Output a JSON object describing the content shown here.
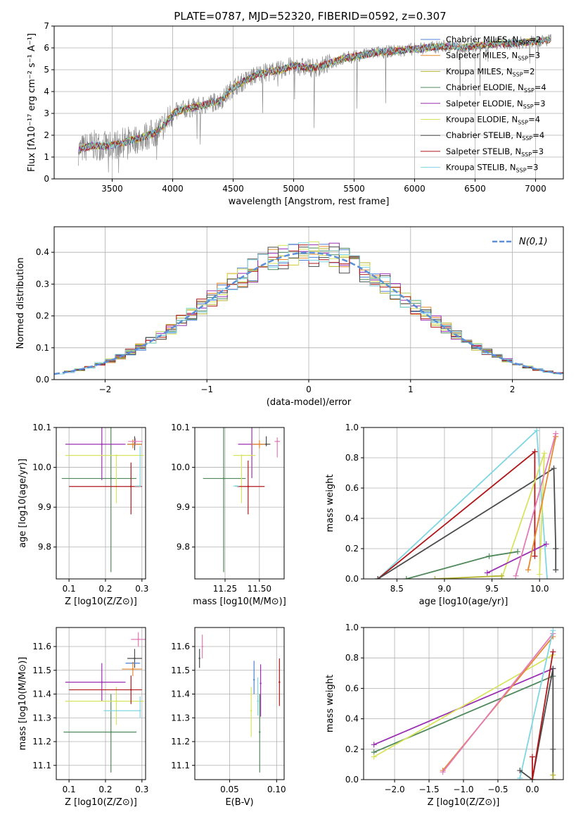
{
  "figure_title": "PLATE=0787, MJD=52320, FIBERID=0592, z=0.307",
  "series_colors": {
    "Chabrier MILES": "#4f81d9",
    "Salpeter MILES": "#e58a2e",
    "Kroupa MILES": "#b4b431",
    "Chabrier ELODIE": "#508a5c",
    "Salpeter ELODIE": "#9b2fb2",
    "Kroupa ELODIE": "#d8e45d",
    "Chabrier STELIB": "#4b4b4b",
    "Salpeter STELIB": "#b0181b",
    "Kroupa STELIB": "#7fd6e2",
    "data": "#808080",
    "pink": "#e37bb8"
  },
  "chart_data": [
    {
      "id": "spectrum",
      "type": "line",
      "title": "PLATE=0787, MJD=52320, FIBERID=0592, z=0.307",
      "xlabel": "wavelength [Angstrom, rest frame]",
      "ylabel": "Flux [fλ10⁻¹⁷ erg cm⁻² s⁻¹ A⁻¹]",
      "xlim": [
        3020,
        7230
      ],
      "ylim": [
        0,
        7
      ],
      "xticks": [
        3500,
        4000,
        4500,
        5000,
        5500,
        6000,
        6500,
        7000
      ],
      "yticks": [
        0,
        1,
        2,
        3,
        4,
        5,
        6,
        7
      ],
      "legend_position": "upper-right",
      "legend": [
        {
          "label": "Chabrier MILES, N_SSP=2",
          "color": "#4f81d9"
        },
        {
          "label": "Salpeter MILES, N_SSP=3",
          "color": "#e58a2e"
        },
        {
          "label": "Kroupa MILES, N_SSP=2",
          "color": "#b4b431"
        },
        {
          "label": "Chabrier ELODIE, N_SSP=4",
          "color": "#508a5c"
        },
        {
          "label": "Salpeter ELODIE, N_SSP=3",
          "color": "#9b2fb2"
        },
        {
          "label": "Kroupa ELODIE, N_SSP=4",
          "color": "#d8e45d"
        },
        {
          "label": "Chabrier STELIB, N_SSP=4",
          "color": "#4b4b4b"
        },
        {
          "label": "Salpeter STELIB, N_SSP=3",
          "color": "#b0181b"
        },
        {
          "label": "Kroupa STELIB, N_SSP=3",
          "color": "#7fd6e2"
        }
      ],
      "model_continuum": {
        "x": [
          3220,
          3280,
          3350,
          3450,
          3500,
          3550,
          3650,
          3750,
          3850,
          3900,
          3950,
          4000,
          4100,
          4200,
          4300,
          4400,
          4500,
          4600,
          4700,
          4800,
          4900,
          5000,
          5100,
          5200,
          5300,
          5400,
          5500,
          5600,
          5700,
          5800,
          5900,
          6000,
          6100,
          6200,
          6300,
          6400,
          6500,
          6600,
          6700,
          6800,
          6900,
          7000,
          7100
        ],
        "y": [
          1.3,
          1.45,
          1.55,
          1.5,
          1.55,
          1.6,
          1.75,
          1.9,
          2.1,
          2.3,
          2.6,
          3.0,
          3.2,
          3.3,
          3.45,
          3.6,
          4.2,
          4.5,
          4.8,
          4.9,
          5.0,
          5.2,
          5.1,
          5.1,
          5.3,
          5.5,
          5.6,
          5.7,
          5.8,
          5.85,
          5.9,
          5.95,
          6.0,
          6.05,
          6.1,
          6.0,
          6.1,
          6.15,
          6.2,
          6.2,
          6.25,
          6.3,
          6.35
        ]
      }
    },
    {
      "id": "residual_histogram",
      "type": "bar",
      "xlabel": "(data-model)/error",
      "ylabel": "Normed distribution",
      "xlim": [
        -2.5,
        2.5
      ],
      "ylim": [
        0,
        0.48
      ],
      "xticks": [
        -2,
        -1,
        0,
        1,
        2
      ],
      "yticks": [
        0.0,
        0.1,
        0.2,
        0.3,
        0.4
      ],
      "legend": [
        {
          "label": "N(0,1)",
          "color": "#5b8fd9",
          "style": "dashed"
        }
      ],
      "bin_width": 0.1,
      "bins_start": -2.5
    },
    {
      "id": "age_vs_Z",
      "type": "scatter",
      "xlabel": "Z [log10(Z/Z⊙)]",
      "ylabel": "age [log10(age/yr)]",
      "xlim": [
        0.065,
        0.31
      ],
      "ylim": [
        9.72,
        10.1
      ],
      "xticks": [
        0.1,
        0.2,
        0.3
      ],
      "yticks": [
        9.8,
        9.9,
        10.0,
        10.1
      ],
      "points": [
        {
          "series": "Chabrier ELODIE",
          "x": 0.215,
          "xerr": [
            0.135,
            0.07
          ],
          "y": 9.972,
          "yerr": [
            0.235,
            0.16
          ]
        },
        {
          "series": "Salpeter ELODIE",
          "x": 0.19,
          "xerr": [
            0.1,
            0.065
          ],
          "y": 10.058,
          "yerr": [
            0.09,
            0.075
          ]
        },
        {
          "series": "Kroupa ELODIE",
          "x": 0.23,
          "xerr": [
            0.14,
            0.075
          ],
          "y": 10.03,
          "yerr": [
            0.12,
            0.0
          ]
        },
        {
          "series": "Salpeter STELIB",
          "x": 0.27,
          "xerr": [
            0.17,
            0.03
          ],
          "y": 9.952,
          "yerr": [
            0.07,
            0.06
          ]
        },
        {
          "series": "Kroupa STELIB",
          "x": 0.295,
          "xerr": [
            0.015,
            0.0
          ],
          "y": 9.953,
          "yerr": [
            0.0,
            0.1
          ]
        },
        {
          "series": "Chabrier STELIB",
          "x": 0.28,
          "xerr": [
            0.02,
            0.02
          ],
          "y": 10.058,
          "yerr": [
            0.015,
            0.02
          ]
        },
        {
          "series": "Salpeter MILES",
          "x": 0.275,
          "xerr": [
            0.015,
            0.025
          ],
          "y": 10.058,
          "yerr": [
            0.01,
            0.012
          ]
        },
        {
          "series": "pink",
          "x": 0.282,
          "xerr": [
            0.02,
            0.02
          ],
          "y": 10.065,
          "yerr": [
            0.01,
            0.008
          ]
        }
      ]
    },
    {
      "id": "age_vs_mass",
      "type": "scatter",
      "xlabel": "mass [log10(M/M⊙)]",
      "ylabel": "",
      "xlim": [
        11.03,
        11.68
      ],
      "ylim": [
        9.72,
        10.1
      ],
      "xticks": [
        11.25,
        11.5
      ],
      "yticks": [
        9.8,
        9.9,
        10.0,
        10.1
      ],
      "points": [
        {
          "series": "Chabrier ELODIE",
          "x": 11.24,
          "xerr": [
            0.15,
            0.16
          ],
          "y": 9.972,
          "yerr": [
            0.235,
            0.155
          ]
        },
        {
          "series": "Salpeter ELODIE",
          "x": 11.445,
          "xerr": [
            0.1,
            0.08
          ],
          "y": 10.058,
          "yerr": [
            0.085,
            0.07
          ]
        },
        {
          "series": "Kroupa ELODIE",
          "x": 11.37,
          "xerr": [
            0.06,
            0.1
          ],
          "y": 10.03,
          "yerr": [
            0.12,
            0.0
          ]
        },
        {
          "series": "Salpeter STELIB",
          "x": 11.418,
          "xerr": [
            0.08,
            0.12
          ],
          "y": 9.952,
          "yerr": [
            0.07,
            0.065
          ]
        },
        {
          "series": "Kroupa STELIB",
          "x": 11.33,
          "xerr": [
            0.02,
            0.02
          ],
          "y": 9.953,
          "yerr": [
            0.0,
            0.0
          ]
        },
        {
          "series": "Chabrier STELIB",
          "x": 11.55,
          "xerr": [
            0.05,
            0.03
          ],
          "y": 10.058,
          "yerr": [
            0.005,
            0.02
          ]
        },
        {
          "series": "Salpeter MILES",
          "x": 11.5,
          "xerr": [
            0.06,
            0.04
          ],
          "y": 10.058,
          "yerr": [
            0.01,
            0.01
          ]
        },
        {
          "series": "pink",
          "x": 11.63,
          "xerr": [
            0.02,
            0.02
          ],
          "y": 10.065,
          "yerr": [
            0.04,
            0.01
          ]
        }
      ]
    },
    {
      "id": "mass_weight_vs_age",
      "type": "line",
      "xlabel": "age [log10(age/yr)]",
      "ylabel": "mass weight",
      "xlim": [
        8.15,
        10.25
      ],
      "ylim": [
        0,
        1
      ],
      "xticks": [
        8.5,
        9.0,
        9.5,
        10.0
      ],
      "yticks": [
        0.0,
        0.2,
        0.4,
        0.6,
        0.8,
        1.0
      ],
      "series": [
        {
          "name": "Kroupa STELIB",
          "points": [
            [
              8.3,
              0.0
            ],
            [
              9.97,
              0.98
            ],
            [
              10.08,
              0.0
            ]
          ]
        },
        {
          "name": "Salpeter STELIB",
          "points": [
            [
              8.3,
              0.0
            ],
            [
              9.95,
              0.84
            ],
            [
              9.95,
              0.15
            ]
          ]
        },
        {
          "name": "Chabrier STELIB",
          "points": [
            [
              8.3,
              0.0
            ],
            [
              10.15,
              0.73
            ],
            [
              10.17,
              0.2
            ],
            [
              10.17,
              0.06
            ]
          ]
        },
        {
          "name": "Kroupa ELODIE",
          "points": [
            [
              9.6,
              0.0
            ],
            [
              10.05,
              0.83
            ],
            [
              10.0,
              0.03
            ]
          ]
        },
        {
          "name": "Salpeter ELODIE",
          "points": [
            [
              9.45,
              0.04
            ],
            [
              10.07,
              0.23
            ]
          ]
        },
        {
          "name": "Chabrier ELODIE",
          "points": [
            [
              8.6,
              0.0
            ],
            [
              9.47,
              0.15
            ],
            [
              9.77,
              0.18
            ]
          ]
        },
        {
          "name": "Salpeter MILES",
          "points": [
            [
              9.88,
              0.06
            ],
            [
              10.17,
              0.94
            ]
          ]
        },
        {
          "name": "pink",
          "points": [
            [
              9.75,
              0.02
            ],
            [
              10.17,
              0.96
            ]
          ]
        },
        {
          "name": "Kroupa MILES",
          "points": [
            [
              8.9,
              0.0
            ],
            [
              9.6,
              0.02
            ]
          ]
        }
      ]
    },
    {
      "id": "mass_vs_Z",
      "type": "scatter",
      "xlabel": "Z [log10(Z/Z⊙)]",
      "ylabel": "mass [log10(M/M⊙)]",
      "xlim": [
        0.065,
        0.31
      ],
      "ylim": [
        11.04,
        11.68
      ],
      "xticks": [
        0.1,
        0.2,
        0.3
      ],
      "yticks": [
        11.1,
        11.2,
        11.3,
        11.4,
        11.5,
        11.6
      ],
      "points": [
        {
          "series": "Chabrier ELODIE",
          "x": 0.215,
          "xerr": [
            0.13,
            0.07
          ],
          "y": 11.24,
          "yerr": [
            0.17,
            0.16
          ]
        },
        {
          "series": "Salpeter ELODIE",
          "x": 0.19,
          "xerr": [
            0.1,
            0.065
          ],
          "y": 11.45,
          "yerr": [
            0.08,
            0.08
          ]
        },
        {
          "series": "Kroupa ELODIE",
          "x": 0.23,
          "xerr": [
            0.14,
            0.075
          ],
          "y": 11.37,
          "yerr": [
            0.1,
            0.06
          ]
        },
        {
          "series": "Salpeter STELIB",
          "x": 0.27,
          "xerr": [
            0.17,
            0.03
          ],
          "y": 11.418,
          "yerr": [
            0.06,
            0.06
          ]
        },
        {
          "series": "Kroupa STELIB",
          "x": 0.295,
          "xerr": [
            0.1,
            0.0
          ],
          "y": 11.33,
          "yerr": [
            0.03,
            0.06
          ]
        },
        {
          "series": "Chabrier STELIB",
          "x": 0.28,
          "xerr": [
            0.02,
            0.02
          ],
          "y": 11.55,
          "yerr": [
            0.04,
            0.04
          ]
        },
        {
          "series": "Chabrier MILES",
          "x": 0.275,
          "xerr": [
            0.02,
            0.02
          ],
          "y": 11.53,
          "yerr": [
            0.0,
            0.0
          ]
        },
        {
          "series": "Salpeter MILES",
          "x": 0.275,
          "xerr": [
            0.03,
            0.025
          ],
          "y": 11.505,
          "yerr": [
            0.03,
            0.03
          ]
        },
        {
          "series": "pink",
          "x": 0.29,
          "xerr": [
            0.02,
            0.02
          ],
          "y": 11.63,
          "yerr": [
            0.03,
            0.03
          ]
        }
      ]
    },
    {
      "id": "mass_vs_EBV",
      "type": "scatter",
      "xlabel": "E(B-V)",
      "ylabel": "",
      "xlim": [
        0.013,
        0.108
      ],
      "ylim": [
        11.04,
        11.68
      ],
      "xticks": [
        0.05,
        0.1
      ],
      "yticks": [
        11.1,
        11.2,
        11.3,
        11.4,
        11.5,
        11.6
      ],
      "points": [
        {
          "series": "Chabrier STELIB",
          "x": 0.018,
          "y": 11.55,
          "yerr": [
            0.04,
            0.04
          ]
        },
        {
          "series": "pink",
          "x": 0.021,
          "y": 11.6,
          "yerr": [
            0.05,
            0.05
          ]
        },
        {
          "series": "Kroupa ELODIE",
          "x": 0.073,
          "y": 11.33,
          "yerr": [
            0.11,
            0.1
          ]
        },
        {
          "series": "Chabrier MILES",
          "x": 0.076,
          "y": 11.46,
          "yerr": [
            0.06,
            0.08
          ]
        },
        {
          "series": "Kroupa STELIB",
          "x": 0.08,
          "y": 11.37,
          "yerr": [
            0.06,
            0.1
          ]
        },
        {
          "series": "Chabrier ELODIE",
          "x": 0.082,
          "y": 11.24,
          "yerr": [
            0.17,
            0.16
          ]
        },
        {
          "series": "Salpeter ELODIE",
          "x": 0.083,
          "y": 11.445,
          "yerr": [
            0.14,
            0.08
          ]
        },
        {
          "series": "Salpeter STELIB",
          "x": 0.103,
          "y": 11.45,
          "yerr": [
            0.1,
            0.1
          ]
        }
      ]
    },
    {
      "id": "mass_weight_vs_Z",
      "type": "line",
      "xlabel": "Z [log10(Z/Z⊙)]",
      "ylabel": "mass weight",
      "xlim": [
        -2.45,
        0.45
      ],
      "ylim": [
        0,
        1
      ],
      "xticks": [
        -2.0,
        -1.5,
        -1.0,
        -0.5,
        0.0
      ],
      "yticks": [
        0.0,
        0.2,
        0.4,
        0.6,
        0.8,
        1.0
      ],
      "series": [
        {
          "name": "Salpeter ELODIE",
          "points": [
            [
              -2.3,
              0.23
            ],
            [
              0.3,
              0.73
            ]
          ]
        },
        {
          "name": "Chabrier ELODIE",
          "points": [
            [
              -2.3,
              0.18
            ],
            [
              0.3,
              0.68
            ]
          ]
        },
        {
          "name": "Kroupa ELODIE",
          "points": [
            [
              -2.3,
              0.15
            ],
            [
              0.3,
              0.82
            ]
          ]
        },
        {
          "name": "Salpeter MILES",
          "points": [
            [
              -1.3,
              0.06
            ],
            [
              0.3,
              0.94
            ]
          ]
        },
        {
          "name": "pink",
          "points": [
            [
              -1.3,
              0.05
            ],
            [
              0.3,
              0.96
            ]
          ]
        },
        {
          "name": "Kroupa STELIB",
          "points": [
            [
              -0.18,
              0.01
            ],
            [
              0.3,
              0.98
            ]
          ]
        },
        {
          "name": "Chabrier STELIB",
          "points": [
            [
              -0.18,
              0.06
            ],
            [
              0.0,
              0.0
            ],
            [
              0.3,
              0.73
            ],
            [
              0.3,
              0.2
            ],
            [
              0.3,
              0.0
            ]
          ]
        },
        {
          "name": "Salpeter STELIB",
          "points": [
            [
              0.0,
              0.15
            ],
            [
              0.0,
              0.0
            ],
            [
              0.3,
              0.84
            ]
          ]
        },
        {
          "name": "Kroupa MILES",
          "points": [
            [
              0.3,
              0.03
            ],
            [
              0.3,
              0.0
            ]
          ]
        }
      ]
    }
  ]
}
